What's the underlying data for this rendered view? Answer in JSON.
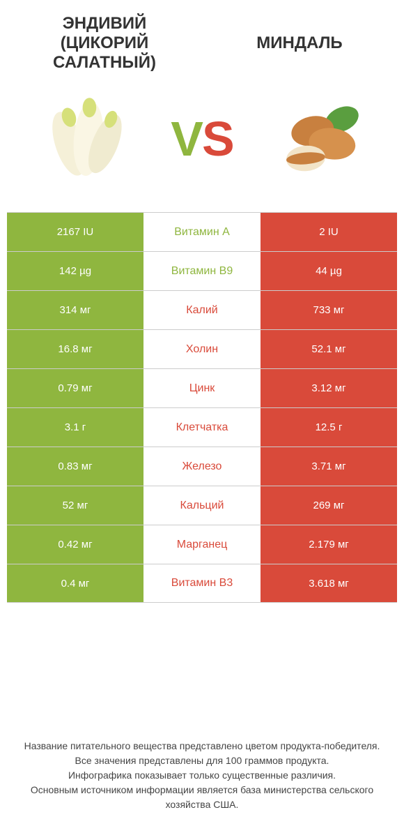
{
  "colors": {
    "green": "#8fb63f",
    "red": "#d94a3a",
    "text": "#333333",
    "white": "#ffffff",
    "border": "#cccccc"
  },
  "header": {
    "left": "ЭНДИВИЙ (ЦИКОРИЙ САЛАТНЫЙ)",
    "right": "МИНДАЛЬ"
  },
  "vs": {
    "v": "V",
    "s": "S"
  },
  "table": {
    "rows": [
      {
        "nutrient": "Витамин A",
        "left": "2167 IU",
        "right": "2 IU",
        "winner": "left"
      },
      {
        "nutrient": "Витамин B9",
        "left": "142 µg",
        "right": "44 µg",
        "winner": "left"
      },
      {
        "nutrient": "Калий",
        "left": "314 мг",
        "right": "733 мг",
        "winner": "right"
      },
      {
        "nutrient": "Холин",
        "left": "16.8 мг",
        "right": "52.1 мг",
        "winner": "right"
      },
      {
        "nutrient": "Цинк",
        "left": "0.79 мг",
        "right": "3.12 мг",
        "winner": "right"
      },
      {
        "nutrient": "Клетчатка",
        "left": "3.1 г",
        "right": "12.5 г",
        "winner": "right"
      },
      {
        "nutrient": "Железо",
        "left": "0.83 мг",
        "right": "3.71 мг",
        "winner": "right"
      },
      {
        "nutrient": "Кальций",
        "left": "52 мг",
        "right": "269 мг",
        "winner": "right"
      },
      {
        "nutrient": "Марганец",
        "left": "0.42 мг",
        "right": "2.179 мг",
        "winner": "right"
      },
      {
        "nutrient": "Витамин B3",
        "left": "0.4 мг",
        "right": "3.618 мг",
        "winner": "right"
      }
    ]
  },
  "footer": {
    "line1": "Название питательного вещества представлено цветом продукта-победителя.",
    "line2": "Все значения представлены для 100 граммов продукта.",
    "line3": "Инфографика показывает только существенные различия.",
    "line4": "Основным источником информации является база министерства сельского хозяйства США."
  }
}
